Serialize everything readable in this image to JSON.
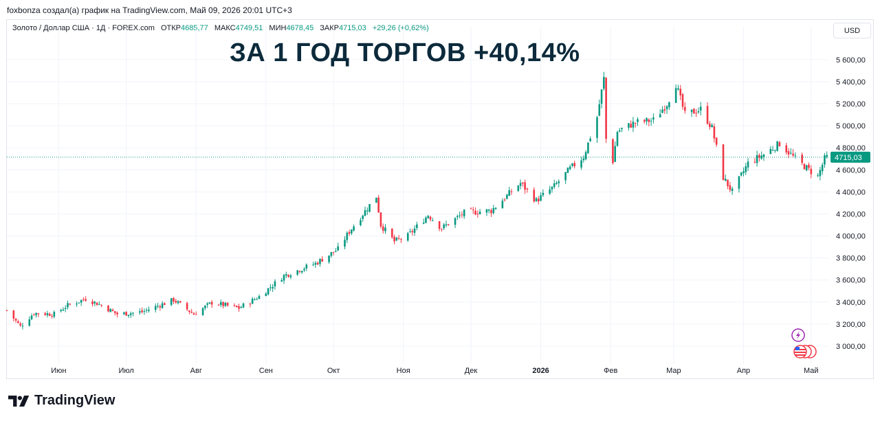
{
  "header": {
    "credit": "foxbonza создал(а) график на TradingView.com, Май 09, 2026 20:01 UTC+3"
  },
  "legend": {
    "symbol": "Золото / Доллар США · 1Д · FOREX.com",
    "open_label": "ОТКР",
    "open_value": "4685,77",
    "high_label": "МАКС",
    "high_value": "4749,51",
    "low_label": "МИН",
    "low_value": "4678,45",
    "close_label": "ЗАКР",
    "close_value": "4715,03",
    "change": "+29,26 (+0,62%)"
  },
  "currency": "USD",
  "overlay_title": "ЗА 1 ГОД ТОРГОВ +40,14%",
  "last_price_label": "4715,03",
  "footer": {
    "brand": "TradingView"
  },
  "colors": {
    "up": "#089981",
    "down": "#f23645",
    "text": "#131722",
    "grid": "#f0f3fa",
    "title": "#0c2a3b"
  },
  "icons": [
    "lightning-icon",
    "us-flag-icon"
  ],
  "chart_data": {
    "type": "candlestick",
    "title": "ЗА 1 ГОД ТОРГОВ +40,14%",
    "symbol": "XAU/USD",
    "y_ticks": [
      3000,
      3200,
      3400,
      3600,
      3800,
      4000,
      4200,
      4400,
      4600,
      4800,
      5000,
      5200,
      5400,
      5600
    ],
    "y_tick_labels": [
      "3 000,00",
      "3 200,00",
      "3 400,00",
      "3 600,00",
      "3 800,00",
      "4 000,00",
      "4 200,00",
      "4 400,00",
      "4 600,00",
      "4 800,00",
      "5 000,00",
      "5 200,00",
      "5 400,00",
      "5 600,00"
    ],
    "ylim": [
      2900,
      5780
    ],
    "last_price": 4715.03,
    "x_start": "2025-05-09",
    "x_end": "2026-05-09",
    "x_ticks": [
      {
        "date": "2025-06-01",
        "label": "Июн"
      },
      {
        "date": "2025-07-01",
        "label": "Июл"
      },
      {
        "date": "2025-08-01",
        "label": "Авг"
      },
      {
        "date": "2025-09-01",
        "label": "Сен"
      },
      {
        "date": "2025-10-01",
        "label": "Окт"
      },
      {
        "date": "2025-11-01",
        "label": "Ноя"
      },
      {
        "date": "2025-12-01",
        "label": "Дек"
      },
      {
        "date": "2026-01-01",
        "label": "2026"
      },
      {
        "date": "2026-02-01",
        "label": "Фев"
      },
      {
        "date": "2026-03-01",
        "label": "Мар"
      },
      {
        "date": "2026-04-01",
        "label": "Апр"
      },
      {
        "date": "2026-05-01",
        "label": "Май"
      }
    ],
    "close_path": [
      [
        "2025-05-09",
        3325
      ],
      [
        "2025-05-15",
        3180
      ],
      [
        "2025-05-21",
        3300
      ],
      [
        "2025-05-30",
        3290
      ],
      [
        "2025-06-05",
        3370
      ],
      [
        "2025-06-13",
        3430
      ],
      [
        "2025-06-20",
        3370
      ],
      [
        "2025-06-27",
        3290
      ],
      [
        "2025-07-08",
        3310
      ],
      [
        "2025-07-22",
        3420
      ],
      [
        "2025-07-31",
        3290
      ],
      [
        "2025-08-08",
        3395
      ],
      [
        "2025-08-20",
        3345
      ],
      [
        "2025-08-29",
        3450
      ],
      [
        "2025-09-09",
        3640
      ],
      [
        "2025-09-23",
        3750
      ],
      [
        "2025-10-03",
        3880
      ],
      [
        "2025-10-08",
        4040
      ],
      [
        "2025-10-20",
        4360
      ],
      [
        "2025-10-22",
        4100
      ],
      [
        "2025-10-28",
        3950
      ],
      [
        "2025-11-03",
        4000
      ],
      [
        "2025-11-12",
        4190
      ],
      [
        "2025-11-18",
        4070
      ],
      [
        "2025-11-28",
        4210
      ],
      [
        "2025-12-10",
        4230
      ],
      [
        "2025-12-23",
        4480
      ],
      [
        "2025-12-30",
        4320
      ],
      [
        "2026-01-07",
        4450
      ],
      [
        "2026-01-14",
        4610
      ],
      [
        "2026-01-20",
        4720
      ],
      [
        "2026-01-26",
        5080
      ],
      [
        "2026-01-29",
        5430
      ],
      [
        "2026-01-30",
        4880
      ],
      [
        "2026-02-02",
        4680
      ],
      [
        "2026-02-04",
        4950
      ],
      [
        "2026-02-12",
        5030
      ],
      [
        "2026-02-20",
        5050
      ],
      [
        "2026-02-26",
        5200
      ],
      [
        "2026-03-02",
        5380
      ],
      [
        "2026-03-06",
        5100
      ],
      [
        "2026-03-13",
        5150
      ],
      [
        "2026-03-18",
        4980
      ],
      [
        "2026-03-23",
        4530
      ],
      [
        "2026-03-27",
        4400
      ],
      [
        "2026-04-03",
        4660
      ],
      [
        "2026-04-10",
        4740
      ],
      [
        "2026-04-17",
        4840
      ],
      [
        "2026-04-24",
        4700
      ],
      [
        "2026-04-30",
        4600
      ],
      [
        "2026-05-04",
        4540
      ],
      [
        "2026-05-07",
        4700
      ],
      [
        "2026-05-08",
        4715
      ]
    ]
  }
}
